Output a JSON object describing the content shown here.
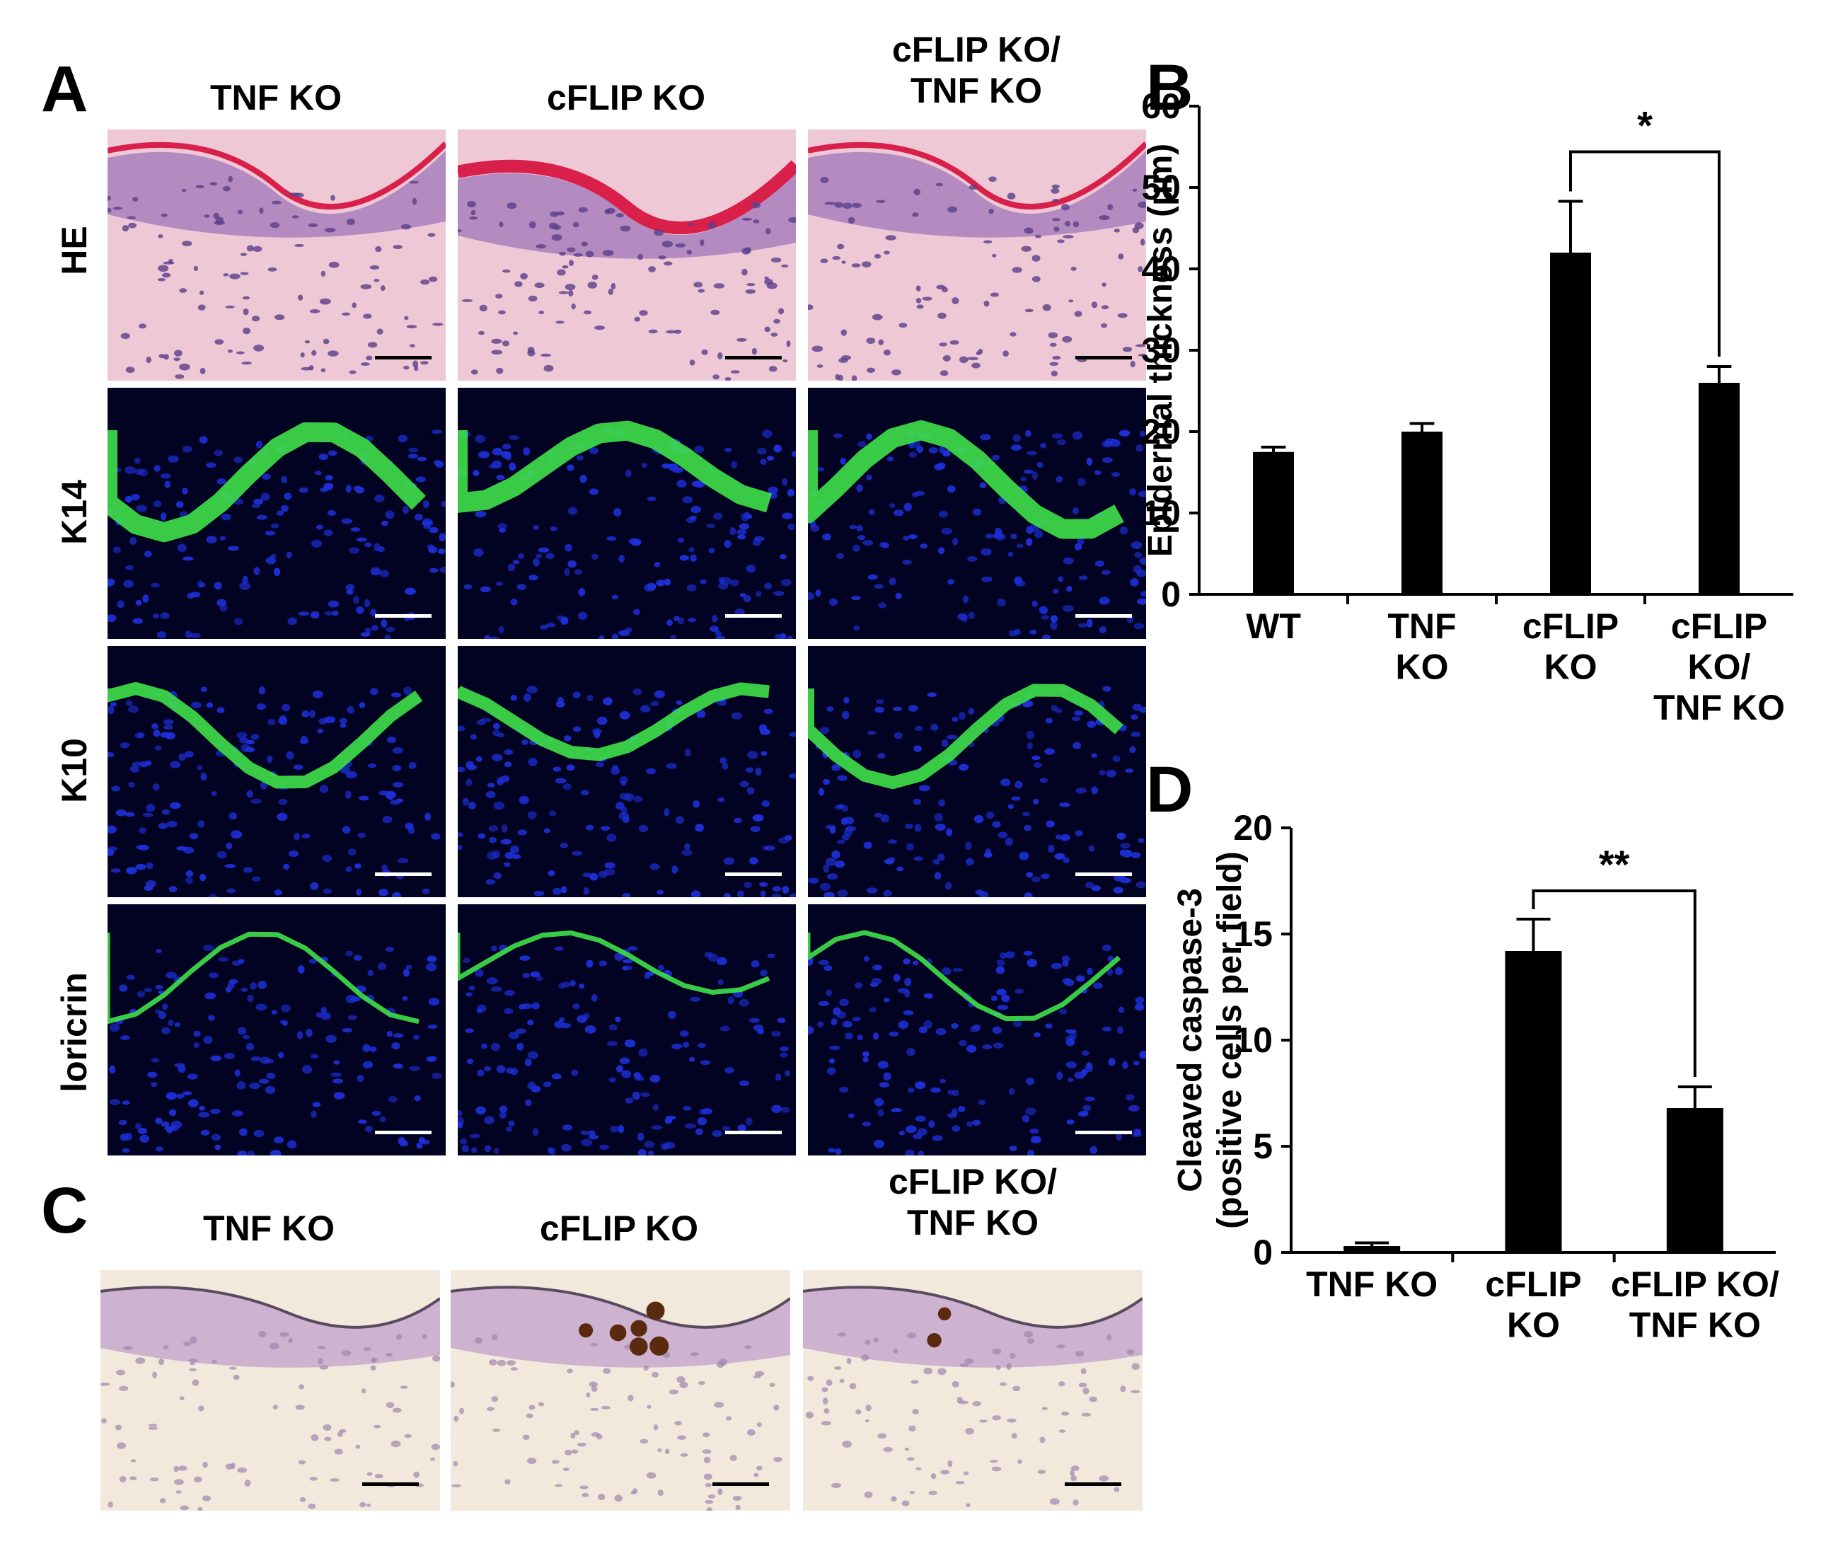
{
  "panel_letters": {
    "a": "A",
    "b": "B",
    "c": "C",
    "d": "D"
  },
  "panel_a": {
    "columns": [
      "TNF KO",
      "cFLIP KO",
      "cFLIP KO/\nTNF KO"
    ],
    "rows": [
      "HE",
      "K14",
      "K10",
      "loricrin"
    ]
  },
  "panel_c": {
    "columns": [
      "TNF KO",
      "cFLIP KO",
      "cFLIP KO/\nTNF KO"
    ]
  },
  "chart_data": [
    {
      "id": "B",
      "type": "bar",
      "categories": [
        "WT",
        "TNF\nKO",
        "cFLIP\nKO",
        "cFLIP\nKO/\nTNF KO"
      ],
      "values": [
        17.5,
        20,
        42,
        26
      ],
      "errors": [
        0.6,
        1.0,
        6.3,
        2.0
      ],
      "ylabel": "Epidermal thickness (μm)",
      "ylim": [
        0,
        60
      ],
      "yticks": [
        0,
        10,
        20,
        30,
        40,
        50,
        60
      ],
      "significance": {
        "from": 2,
        "to": 3,
        "label": "*"
      },
      "bar_color": "#000000"
    },
    {
      "id": "D",
      "type": "bar",
      "categories": [
        "TNF KO",
        "cFLIP\nKO",
        "cFLIP KO/\nTNF KO"
      ],
      "values": [
        0.3,
        14.2,
        6.8
      ],
      "errors": [
        0.15,
        1.5,
        1.0
      ],
      "ylabel": "Cleaved caspase-3\n(positive cells per field)",
      "ylim": [
        0,
        20
      ],
      "yticks": [
        0,
        5,
        10,
        15,
        20
      ],
      "significance": {
        "from": 1,
        "to": 2,
        "label": "**"
      },
      "bar_color": "#000000"
    }
  ]
}
